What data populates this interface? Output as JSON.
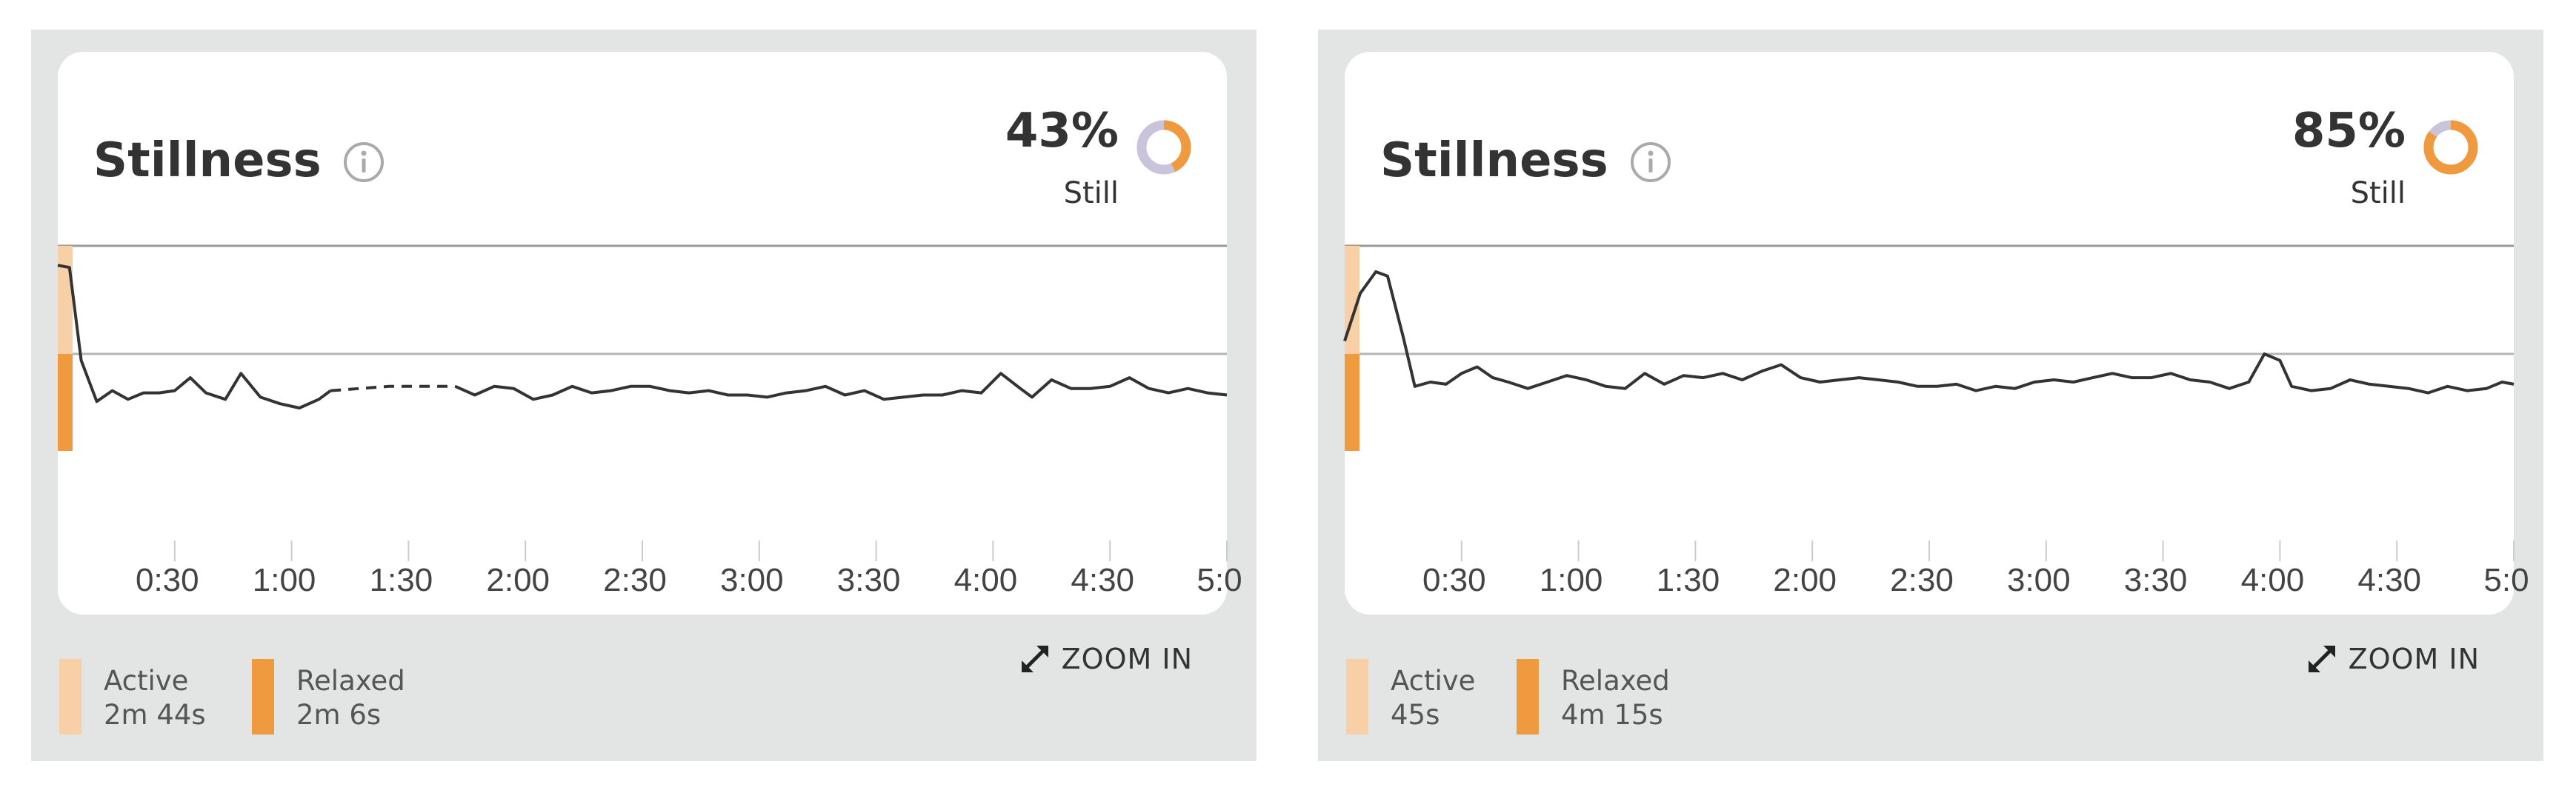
{
  "colors": {
    "active": "#f8d0a8",
    "relaxed": "#ef9a3f",
    "donut_remainder": "#c9c4dc",
    "line": "#333333",
    "axis": "#999999",
    "background": "#e3e5e4"
  },
  "panels": [
    {
      "title": "Stillness",
      "info_icon": "info-icon",
      "percent": "43%",
      "percent_value": 0.43,
      "status": "Still",
      "legend": [
        {
          "label": "Active",
          "value": "2m 44s"
        },
        {
          "label": "Relaxed",
          "value": "2m 6s"
        }
      ],
      "zoom": {
        "icon": "expand-icon",
        "label": "ZOOM IN"
      },
      "chart_data": {
        "type": "line",
        "x_ticks": [
          "0:30",
          "1:00",
          "1:30",
          "2:00",
          "2:30",
          "3:00",
          "3:30",
          "4:00",
          "4:30",
          "5:0"
        ],
        "x_tick_values": [
          30,
          60,
          90,
          120,
          150,
          180,
          210,
          240,
          270,
          300
        ],
        "xlim": [
          0,
          300
        ],
        "ylim": [
          0,
          1
        ],
        "baseline": 0.5,
        "series": [
          {
            "values": [
              [
                0,
                0.91
              ],
              [
                3,
                0.9
              ],
              [
                6,
                0.47
              ],
              [
                10,
                0.28
              ],
              [
                14,
                0.33
              ],
              [
                18,
                0.29
              ],
              [
                22,
                0.32
              ],
              [
                26,
                0.32
              ],
              [
                30,
                0.33
              ],
              [
                34,
                0.39
              ],
              [
                38,
                0.32
              ],
              [
                43,
                0.29
              ],
              [
                47,
                0.41
              ],
              [
                52,
                0.3
              ],
              [
                57,
                0.27
              ],
              [
                62,
                0.25
              ],
              [
                67,
                0.29
              ],
              [
                70,
                0.33
              ]
            ]
          },
          {
            "style": "dashed",
            "values": [
              [
                70,
                0.33
              ],
              [
                85,
                0.35
              ],
              [
                102,
                0.35
              ]
            ]
          },
          {
            "values": [
              [
                102,
                0.35
              ],
              [
                107,
                0.31
              ],
              [
                112,
                0.35
              ],
              [
                117,
                0.34
              ],
              [
                122,
                0.29
              ],
              [
                127,
                0.31
              ],
              [
                132,
                0.35
              ],
              [
                137,
                0.32
              ],
              [
                142,
                0.33
              ],
              [
                147,
                0.35
              ],
              [
                152,
                0.35
              ],
              [
                157,
                0.33
              ],
              [
                162,
                0.32
              ],
              [
                167,
                0.33
              ],
              [
                172,
                0.31
              ],
              [
                177,
                0.31
              ],
              [
                182,
                0.3
              ],
              [
                187,
                0.32
              ],
              [
                192,
                0.33
              ],
              [
                197,
                0.35
              ],
              [
                202,
                0.31
              ],
              [
                207,
                0.33
              ],
              [
                212,
                0.29
              ],
              [
                217,
                0.3
              ],
              [
                222,
                0.31
              ],
              [
                227,
                0.31
              ],
              [
                232,
                0.33
              ],
              [
                237,
                0.32
              ],
              [
                242,
                0.41
              ],
              [
                247,
                0.34
              ],
              [
                250,
                0.3
              ],
              [
                255,
                0.38
              ],
              [
                260,
                0.34
              ],
              [
                265,
                0.34
              ],
              [
                270,
                0.35
              ],
              [
                275,
                0.39
              ],
              [
                280,
                0.34
              ],
              [
                285,
                0.32
              ],
              [
                290,
                0.34
              ],
              [
                295,
                0.32
              ],
              [
                300,
                0.31
              ]
            ]
          }
        ]
      }
    },
    {
      "title": "Stillness",
      "info_icon": "info-icon",
      "percent": "85%",
      "percent_value": 0.85,
      "status": "Still",
      "legend": [
        {
          "label": "Active",
          "value": "45s"
        },
        {
          "label": "Relaxed",
          "value": "4m 15s"
        }
      ],
      "zoom": {
        "icon": "expand-icon",
        "label": "ZOOM IN"
      },
      "chart_data": {
        "type": "line",
        "x_ticks": [
          "0:30",
          "1:00",
          "1:30",
          "2:00",
          "2:30",
          "3:00",
          "3:30",
          "4:00",
          "4:30",
          "5:0"
        ],
        "x_tick_values": [
          30,
          60,
          90,
          120,
          150,
          180,
          210,
          240,
          270,
          300
        ],
        "xlim": [
          0,
          300
        ],
        "ylim": [
          0,
          1
        ],
        "baseline": 0.5,
        "series": [
          {
            "values": [
              [
                0,
                0.56
              ],
              [
                4,
                0.78
              ],
              [
                8,
                0.88
              ],
              [
                11,
                0.86
              ],
              [
                15,
                0.58
              ],
              [
                18,
                0.35
              ],
              [
                22,
                0.37
              ],
              [
                26,
                0.36
              ],
              [
                30,
                0.41
              ],
              [
                34,
                0.44
              ],
              [
                38,
                0.39
              ],
              [
                42,
                0.37
              ],
              [
                47,
                0.34
              ],
              [
                52,
                0.37
              ],
              [
                57,
                0.4
              ],
              [
                62,
                0.38
              ],
              [
                67,
                0.35
              ],
              [
                72,
                0.34
              ],
              [
                77,
                0.41
              ],
              [
                82,
                0.36
              ],
              [
                87,
                0.4
              ],
              [
                92,
                0.39
              ],
              [
                97,
                0.41
              ],
              [
                102,
                0.38
              ],
              [
                107,
                0.42
              ],
              [
                112,
                0.45
              ],
              [
                117,
                0.39
              ],
              [
                122,
                0.37
              ],
              [
                127,
                0.38
              ],
              [
                132,
                0.39
              ],
              [
                137,
                0.38
              ],
              [
                142,
                0.37
              ],
              [
                147,
                0.35
              ],
              [
                152,
                0.35
              ],
              [
                157,
                0.36
              ],
              [
                162,
                0.33
              ],
              [
                167,
                0.35
              ],
              [
                172,
                0.34
              ],
              [
                177,
                0.37
              ],
              [
                182,
                0.38
              ],
              [
                187,
                0.37
              ],
              [
                192,
                0.39
              ],
              [
                197,
                0.41
              ],
              [
                202,
                0.39
              ],
              [
                207,
                0.39
              ],
              [
                212,
                0.41
              ],
              [
                217,
                0.38
              ],
              [
                222,
                0.37
              ],
              [
                227,
                0.34
              ],
              [
                232,
                0.37
              ],
              [
                236,
                0.5
              ],
              [
                240,
                0.47
              ],
              [
                243,
                0.35
              ],
              [
                248,
                0.33
              ],
              [
                253,
                0.34
              ],
              [
                258,
                0.38
              ],
              [
                263,
                0.36
              ],
              [
                268,
                0.35
              ],
              [
                273,
                0.34
              ],
              [
                278,
                0.32
              ],
              [
                283,
                0.35
              ],
              [
                288,
                0.33
              ],
              [
                293,
                0.34
              ],
              [
                297,
                0.37
              ],
              [
                300,
                0.36
              ]
            ]
          }
        ]
      }
    }
  ]
}
